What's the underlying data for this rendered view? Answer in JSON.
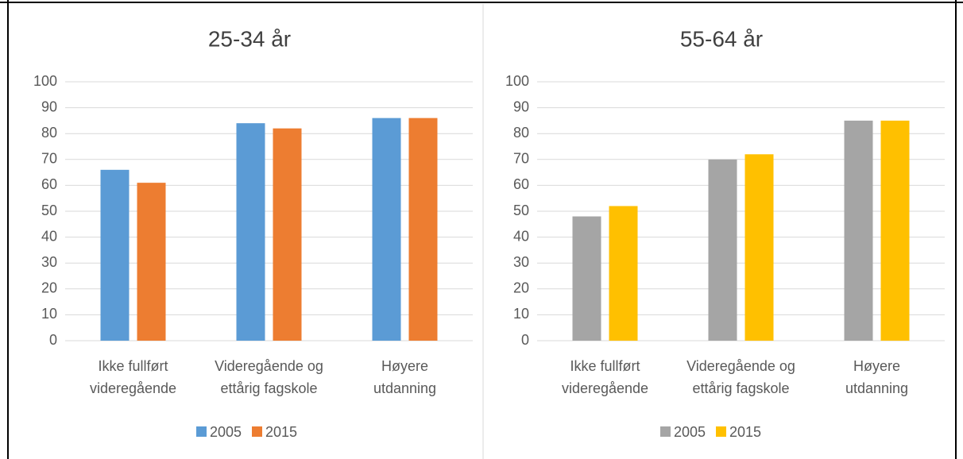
{
  "chart_data": [
    {
      "type": "bar",
      "title": "25-34 år",
      "categories": [
        [
          "Ikke fullført",
          "videregående"
        ],
        [
          "Videregående og",
          "ettårig fagskole"
        ],
        [
          "Høyere",
          "utdanning"
        ]
      ],
      "series": [
        {
          "name": "2005",
          "color": "#5b9bd5",
          "values": [
            66,
            84,
            86
          ]
        },
        {
          "name": "2015",
          "color": "#ed7d31",
          "values": [
            61,
            82,
            86
          ]
        }
      ],
      "ylim": [
        0,
        100
      ],
      "yticks": [
        0,
        10,
        20,
        30,
        40,
        50,
        60,
        70,
        80,
        90,
        100
      ],
      "grid": true,
      "legend": "bottom"
    },
    {
      "type": "bar",
      "title": "55-64 år",
      "categories": [
        [
          "Ikke fullført",
          "videregående"
        ],
        [
          "Videregående og",
          "ettårig fagskole"
        ],
        [
          "Høyere",
          "utdanning"
        ]
      ],
      "series": [
        {
          "name": "2005",
          "color": "#a5a5a5",
          "values": [
            48,
            70,
            85
          ]
        },
        {
          "name": "2015",
          "color": "#ffc000",
          "values": [
            52,
            72,
            85
          ]
        }
      ],
      "ylim": [
        0,
        100
      ],
      "yticks": [
        0,
        10,
        20,
        30,
        40,
        50,
        60,
        70,
        80,
        90,
        100
      ],
      "grid": true,
      "legend": "bottom"
    }
  ]
}
